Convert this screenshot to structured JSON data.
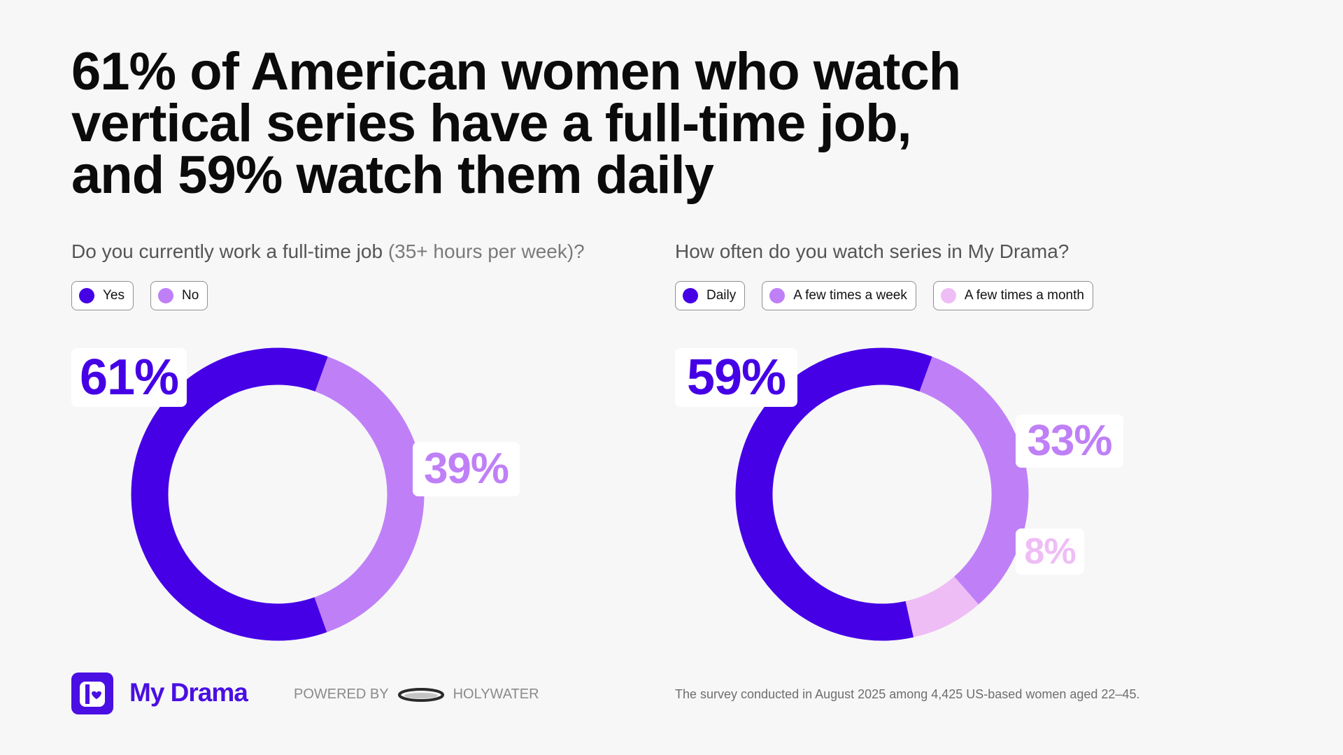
{
  "headline": {
    "line1": "61% of American women who watch",
    "line2": "vertical series have a full-time job,",
    "line3": "and 59% watch them daily"
  },
  "colors": {
    "primary": "#4500e6",
    "secondary": "#bf80f7",
    "tertiary": "#efbdf5",
    "brand": "#4a0fe3"
  },
  "chart_data": [
    {
      "type": "pie",
      "title_main": "Do you currently work a full-time job",
      "title_sub": "(35+ hours per week)?",
      "categories": [
        "Yes",
        "No"
      ],
      "values": [
        61,
        39
      ],
      "labels": [
        "61%",
        "39%"
      ],
      "colors": [
        "#4500e6",
        "#bf80f7"
      ]
    },
    {
      "type": "pie",
      "title_main": "How often do you watch series in My Drama?",
      "categories": [
        "Daily",
        "A few times a week",
        "A few times a month"
      ],
      "values": [
        59,
        33,
        8
      ],
      "labels": [
        "59%",
        "33%",
        "8%"
      ],
      "colors": [
        "#4500e6",
        "#bf80f7",
        "#efbdf5"
      ]
    }
  ],
  "footer": {
    "brand": "My Drama",
    "powered_by": "POWERED BY",
    "partner": "HOLYWATER",
    "note": "The survey conducted in August 2025 among 4,425 US-based women aged 22–45."
  },
  "icons": {
    "logo": "my-drama-logo-icon",
    "partner_logo": "holywater-logo-icon"
  }
}
